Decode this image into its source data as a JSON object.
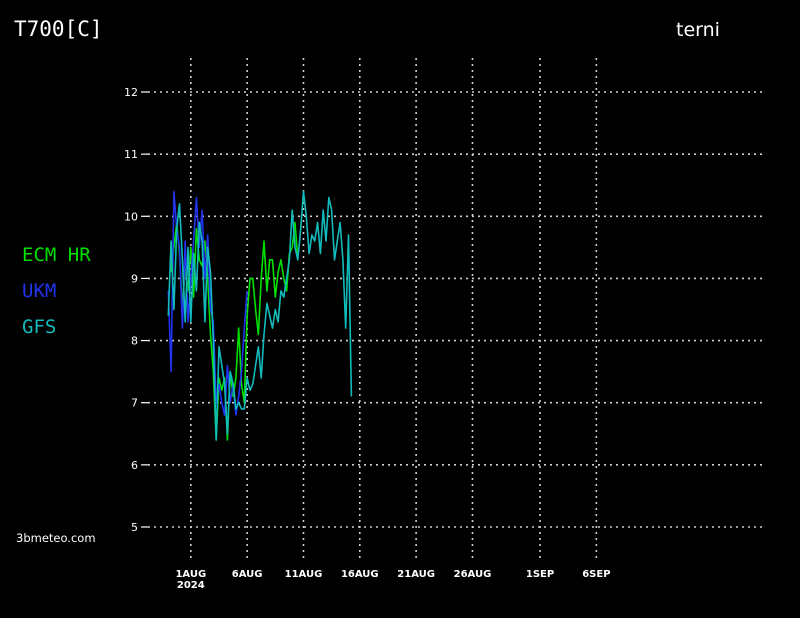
{
  "title": "T700[C]",
  "location": "terni",
  "credit": "3bmeteo.com",
  "chart_data": {
    "type": "line",
    "title": "T700[C]",
    "ylim": [
      5,
      12
    ],
    "yticks": [
      5,
      6,
      7,
      8,
      9,
      10,
      11,
      12
    ],
    "xlim": [
      -3.8,
      50.7
    ],
    "xticks": [
      {
        "day": 0,
        "label": "1AUG",
        "sublabel": "2024"
      },
      {
        "day": 5,
        "label": "6AUG",
        "sublabel": ""
      },
      {
        "day": 10,
        "label": "11AUG",
        "sublabel": ""
      },
      {
        "day": 15,
        "label": "16AUG",
        "sublabel": ""
      },
      {
        "day": 20,
        "label": "21AUG",
        "sublabel": ""
      },
      {
        "day": 25,
        "label": "26AUG",
        "sublabel": ""
      },
      {
        "day": 31,
        "label": "1SEP",
        "sublabel": ""
      },
      {
        "day": 36,
        "label": "6SEP",
        "sublabel": ""
      }
    ],
    "grid": true,
    "legend_position": "left",
    "series": [
      {
        "name": "ECM HR",
        "color": "#00e000",
        "x": [
          -1.75,
          -1.5,
          -1.25,
          -1,
          -0.75,
          -0.5,
          -0.25,
          0,
          0.25,
          0.5,
          0.75,
          1,
          1.25,
          1.5,
          1.75,
          2,
          2.25,
          2.5,
          2.75,
          3,
          3.25,
          3.5,
          3.75,
          4,
          4.25,
          4.5,
          4.75,
          5,
          5.25,
          5.5,
          5.75,
          6,
          6.25,
          6.5,
          6.75,
          7,
          7.25,
          7.5,
          7.75,
          8,
          8.25,
          8.5,
          8.75,
          9,
          9.25,
          9.5
        ],
        "values": [
          9.1,
          9.5,
          9.9,
          9.4,
          8.5,
          9.2,
          8.8,
          9.5,
          8.7,
          9.8,
          9.3,
          9.2,
          9.6,
          9.0,
          8.1,
          7.5,
          6.4,
          7.4,
          7.2,
          7.4,
          6.4,
          7.5,
          7.1,
          7.4,
          8.2,
          7.3,
          7.0,
          8.4,
          9.0,
          9.0,
          8.5,
          8.1,
          9.0,
          9.6,
          8.8,
          9.3,
          9.3,
          8.7,
          9.1,
          9.3,
          9.0,
          8.8,
          9.4,
          9.5,
          9.9,
          9.3
        ]
      },
      {
        "name": "UKM",
        "color": "#2233ee",
        "x": [
          -2,
          -1.75,
          -1.5,
          -1.25,
          -1,
          -0.75,
          -0.5,
          -0.25,
          0,
          0.25,
          0.5,
          0.75,
          1,
          1.25,
          1.5,
          1.75,
          2,
          2.25,
          2.5,
          2.75,
          3,
          3.25,
          3.5,
          3.75,
          4,
          4.25,
          4.5,
          4.75,
          5
        ],
        "values": [
          8.8,
          7.5,
          10.4,
          9.8,
          9.5,
          8.2,
          9.6,
          8.3,
          9.0,
          9.6,
          10.3,
          9.5,
          10.1,
          9.0,
          9.7,
          8.5,
          8.3,
          7.0,
          7.3,
          7.0,
          6.8,
          7.6,
          7.0,
          7.3,
          6.8,
          7.1,
          7.5,
          8.2,
          8.8
        ]
      },
      {
        "name": "GFS",
        "color": "#11bbbb",
        "x": [
          -2,
          -1.75,
          -1.5,
          -1.25,
          -1,
          -0.75,
          -0.5,
          -0.25,
          0,
          0.25,
          0.5,
          0.75,
          1,
          1.25,
          1.5,
          1.75,
          2,
          2.25,
          2.5,
          2.75,
          3,
          3.25,
          3.5,
          3.75,
          4,
          4.25,
          4.5,
          4.75,
          5,
          5.25,
          5.5,
          5.75,
          6,
          6.25,
          6.5,
          6.75,
          7,
          7.25,
          7.5,
          7.75,
          8,
          8.25,
          8.5,
          8.75,
          9,
          9.25,
          9.5,
          9.75,
          10,
          10.25,
          10.5,
          10.75,
          11,
          11.25,
          11.5,
          11.75,
          12,
          12.25,
          12.5,
          12.75,
          13,
          13.25,
          13.5,
          13.75,
          14,
          14.25
        ],
        "values": [
          8.4,
          9.6,
          8.5,
          9.8,
          10.2,
          9.3,
          8.3,
          9.5,
          8.3,
          9.4,
          8.8,
          9.9,
          9.6,
          8.3,
          9.5,
          9.1,
          8.0,
          6.4,
          7.9,
          7.6,
          7.3,
          6.5,
          7.5,
          7.3,
          6.9,
          7.0,
          6.9,
          6.9,
          7.4,
          7.2,
          7.3,
          7.6,
          7.9,
          7.4,
          8.1,
          8.6,
          8.4,
          8.2,
          8.5,
          8.3,
          8.8,
          8.7,
          9.0,
          9.3,
          10.1,
          9.5,
          9.3,
          9.8,
          10.4,
          10.0,
          9.4,
          9.7,
          9.6,
          9.9,
          9.4,
          10.1,
          9.6,
          10.3,
          10.1,
          9.3,
          9.6,
          9.9,
          9.3,
          8.2,
          9.7,
          7.1
        ]
      }
    ]
  }
}
